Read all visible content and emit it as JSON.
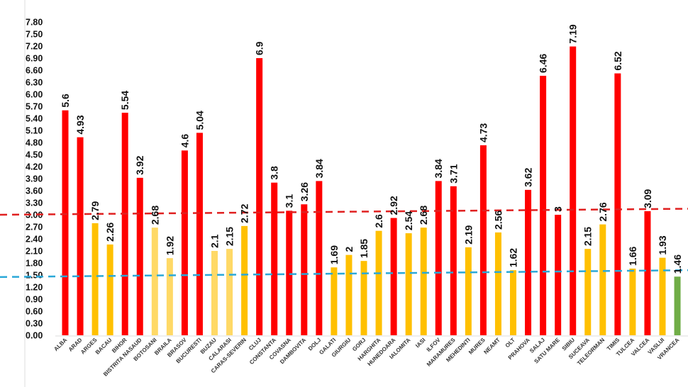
{
  "chart_data": {
    "type": "bar",
    "title": "",
    "xlabel": "",
    "ylabel": "",
    "ylim": [
      0,
      7.8
    ],
    "ytick_step": 0.3,
    "grid": false,
    "legend": "none",
    "categories": [
      "ALBA",
      "ARAD",
      "ARGES",
      "BACAU",
      "BIHOR",
      "BISTRITA NASAUD",
      "BOTOSANI",
      "BRAILA",
      "BRASOV",
      "BUCURESTI",
      "BUZAU",
      "CALARASI",
      "CARAS-SEVERIN",
      "CLUJ",
      "CONSTANTA",
      "COVASNA",
      "DAMBOVITA",
      "DOLJ",
      "GALATI",
      "GIURGIU",
      "GORJ",
      "HARGHITA",
      "HUNEDOARA",
      "IALOMITA",
      "IASI",
      "ILFOV",
      "MARAMURES",
      "MEHEDINTI",
      "MURES",
      "NEAMT",
      "OLT",
      "PRAHOVA",
      "SALAJ",
      "SATU MARE",
      "SIBIU",
      "SUCEAVA",
      "TELEORMAN",
      "TIMIS",
      "TULCEA",
      "VALCEA",
      "VASLUI",
      "VRANCEA"
    ],
    "values": [
      5.6,
      4.93,
      2.79,
      2.26,
      5.54,
      3.92,
      2.68,
      1.92,
      4.6,
      5.04,
      2.1,
      2.15,
      2.72,
      6.9,
      3.8,
      3.1,
      3.26,
      3.84,
      1.69,
      2,
      1.85,
      2.6,
      2.92,
      2.54,
      2.68,
      3.84,
      3.71,
      2.19,
      4.73,
      2.56,
      1.62,
      3.62,
      6.46,
      3,
      7.19,
      2.15,
      2.76,
      6.52,
      1.66,
      3.09,
      1.93,
      1.46
    ],
    "data_labels": [
      "5.6",
      "4.93",
      "2.79",
      "2.26",
      "5.54",
      "3.92",
      "2.68",
      "1.92",
      "4.6",
      "5.04",
      "2.1",
      "2.15",
      "2.72",
      "6.9",
      "3.8",
      "3.1",
      "3.26",
      "3.84",
      "1.69",
      "2",
      "1.85",
      "2.6",
      "2.92",
      "2.54",
      "2.68",
      "3.84",
      "3.71",
      "2.19",
      "4.73",
      "2.56",
      "1.62",
      "3.62",
      "6.46",
      "3",
      "7.19",
      "2.15",
      "2.76",
      "6.52",
      "1.66",
      "3.09",
      "1.93",
      "1.46"
    ],
    "bar_colors": [
      "red",
      "red",
      "orange",
      "orange",
      "red",
      "red",
      "light",
      "light",
      "red",
      "red",
      "light",
      "light",
      "orange",
      "red",
      "red",
      "red",
      "red",
      "red",
      "orange",
      "orange",
      "orange",
      "orange",
      "red",
      "orange",
      "orange",
      "red",
      "red",
      "orange",
      "red",
      "orange",
      "orange",
      "red",
      "red",
      "red",
      "red",
      "orange",
      "orange",
      "red",
      "orange",
      "red",
      "orange",
      "green"
    ],
    "palette": {
      "red": "#FF0000",
      "orange": "#FFC000",
      "light": "#FFD966",
      "green": "#70AD47"
    },
    "reference_lines": [
      {
        "color": "#E02020",
        "style": "dashed",
        "y_start": 3.0,
        "y_end": 3.15
      },
      {
        "color": "#2AA8D8",
        "style": "dashed",
        "y_start": 1.45,
        "y_end": 1.62
      }
    ]
  }
}
